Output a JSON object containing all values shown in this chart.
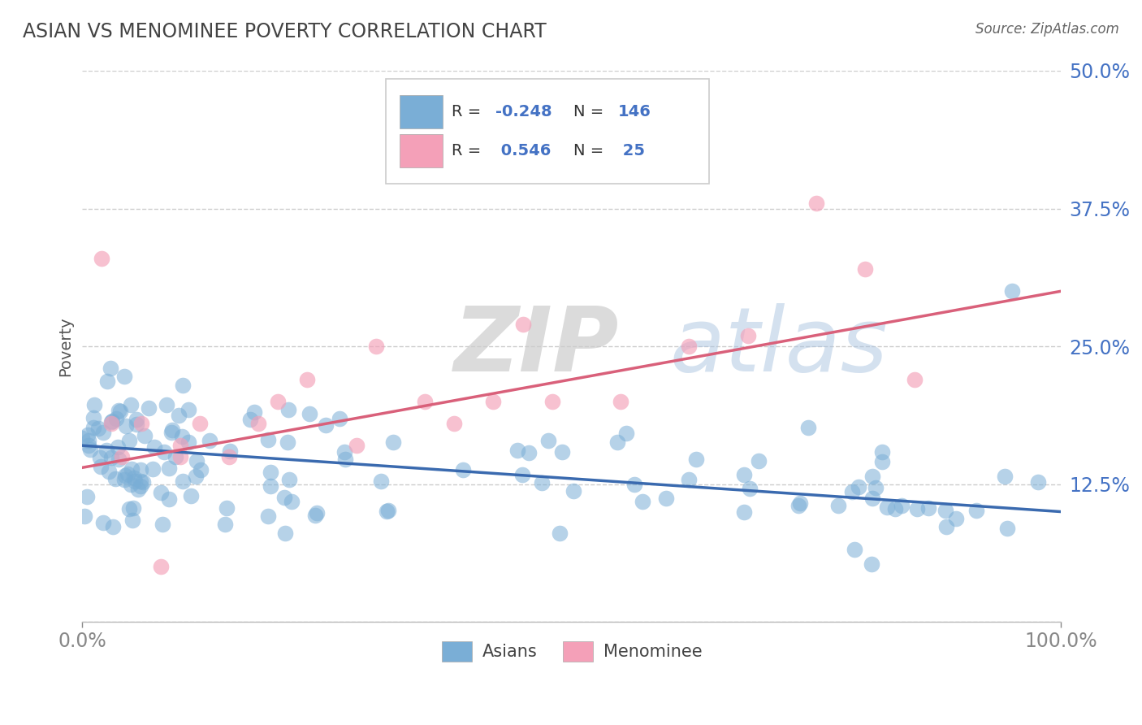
{
  "title": "ASIAN VS MENOMINEE POVERTY CORRELATION CHART",
  "source": "Source: ZipAtlas.com",
  "ylabel": "Poverty",
  "xlim": [
    0,
    100
  ],
  "ylim": [
    0,
    50
  ],
  "yticks": [
    0,
    12.5,
    25.0,
    37.5,
    50.0
  ],
  "xtick_labels": [
    "0.0%",
    "100.0%"
  ],
  "blue_R": -0.248,
  "blue_N": 146,
  "pink_R": 0.546,
  "pink_N": 25,
  "blue_color": "#7aaed6",
  "blue_line_color": "#3a6aaf",
  "pink_color": "#f4a0b8",
  "pink_line_color": "#d9607a",
  "background_color": "#ffffff",
  "grid_color": "#cccccc",
  "title_color": "#444444",
  "axis_label_color": "#4472c4",
  "legend_label1": "Asians",
  "legend_label2": "Menominee",
  "blue_trend_x": [
    0,
    100
  ],
  "blue_trend_y": [
    16.0,
    10.0
  ],
  "pink_trend_x": [
    0,
    100
  ],
  "pink_trend_y": [
    14.0,
    30.0
  ]
}
